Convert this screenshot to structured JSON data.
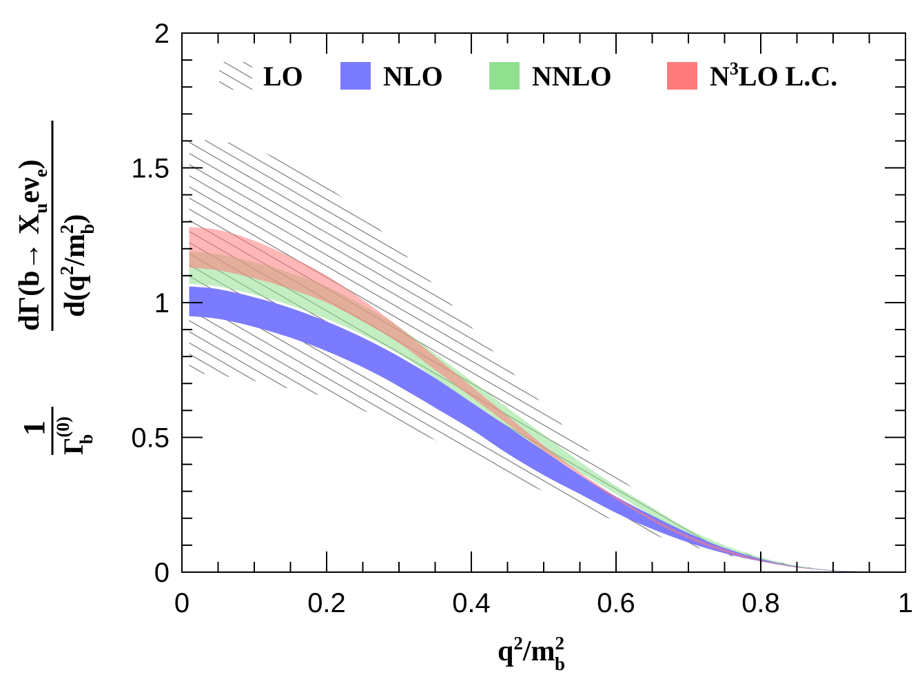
{
  "chart_data": {
    "type": "area",
    "x_range": [
      0,
      1
    ],
    "y_range": [
      0,
      2
    ],
    "x_ticks": [
      0,
      0.2,
      0.4,
      0.6,
      0.8,
      1
    ],
    "x_tick_labels": [
      "0",
      "0.2",
      "0.4",
      "0.6",
      "0.8",
      "1"
    ],
    "y_ticks": [
      0,
      0.5,
      1,
      1.5,
      2
    ],
    "y_tick_labels": [
      "0",
      "0.5",
      "1",
      "1.5",
      "2"
    ],
    "x_minor_step": 0.05,
    "y_minor_step": 0.1,
    "xlabel": "q²/m²b",
    "ylabel": "1/Γb(0) · dΓ(b→ Xu e ν̄e)/d(q²/m²b)",
    "grid": false,
    "legend_position": "top",
    "x": [
      0.01,
      0.05,
      0.1,
      0.15,
      0.2,
      0.25,
      0.3,
      0.35,
      0.4,
      0.45,
      0.5,
      0.55,
      0.6,
      0.65,
      0.7,
      0.75,
      0.8,
      0.85,
      0.9,
      0.95,
      0.97
    ],
    "series": [
      {
        "name": "LO",
        "style": "hatch",
        "color": "#6e6e6e",
        "upper": [
          1.6,
          1.6,
          1.57,
          1.51,
          1.43,
          1.33,
          1.2,
          1.06,
          0.91,
          0.76,
          0.62,
          0.48,
          0.36,
          0.26,
          0.17,
          0.1,
          0.055,
          0.025,
          0.008,
          0.001,
          0.0
        ],
        "lower": [
          0.74,
          0.73,
          0.71,
          0.68,
          0.65,
          0.6,
          0.55,
          0.49,
          0.43,
          0.36,
          0.3,
          0.24,
          0.19,
          0.14,
          0.1,
          0.065,
          0.038,
          0.018,
          0.006,
          0.001,
          0.0
        ]
      },
      {
        "name": "NLO",
        "style": "fill",
        "color": "#7b7bff",
        "upper": [
          1.06,
          1.05,
          1.02,
          0.98,
          0.93,
          0.87,
          0.8,
          0.72,
          0.63,
          0.54,
          0.45,
          0.36,
          0.28,
          0.21,
          0.145,
          0.09,
          0.05,
          0.022,
          0.007,
          0.001,
          0.0
        ],
        "lower": [
          0.95,
          0.94,
          0.91,
          0.87,
          0.82,
          0.76,
          0.69,
          0.61,
          0.53,
          0.44,
          0.36,
          0.29,
          0.22,
          0.16,
          0.11,
          0.07,
          0.04,
          0.018,
          0.005,
          0.0005,
          0.0
        ]
      },
      {
        "name": "NNLO",
        "style": "fill",
        "color": "#8fe08f",
        "upper": [
          1.19,
          1.18,
          1.15,
          1.11,
          1.06,
          0.99,
          0.91,
          0.81,
          0.71,
          0.61,
          0.51,
          0.41,
          0.32,
          0.24,
          0.16,
          0.1,
          0.055,
          0.024,
          0.007,
          0.001,
          0.0
        ],
        "lower": [
          1.07,
          1.06,
          1.03,
          0.99,
          0.94,
          0.88,
          0.81,
          0.72,
          0.63,
          0.54,
          0.45,
          0.37,
          0.29,
          0.21,
          0.145,
          0.09,
          0.048,
          0.02,
          0.006,
          0.0006,
          0.0
        ]
      },
      {
        "name": "N³LO L.C.",
        "style": "fill",
        "color": "#ff7b7b",
        "upper": [
          1.28,
          1.27,
          1.23,
          1.17,
          1.1,
          1.01,
          0.91,
          0.8,
          0.69,
          0.58,
          0.47,
          0.37,
          0.28,
          0.2,
          0.135,
          0.085,
          0.045,
          0.02,
          0.006,
          0.001,
          0.0
        ],
        "lower": [
          1.13,
          1.12,
          1.09,
          1.05,
          1.0,
          0.93,
          0.85,
          0.75,
          0.65,
          0.55,
          0.45,
          0.36,
          0.27,
          0.19,
          0.125,
          0.075,
          0.04,
          0.017,
          0.005,
          0.0006,
          0.0
        ]
      }
    ]
  },
  "legend": {
    "lo": "LO",
    "nlo": "NLO",
    "nnlo": "NNLO",
    "n3lo_prefix": "N",
    "n3lo_sup": "3",
    "n3lo_suffix": "LO L.C."
  },
  "xlabel_parts": {
    "base": "q",
    "sup1": "2",
    "slash": "/m",
    "sup2": "2",
    "sub": "b"
  },
  "ylabel_parts": {
    "one": "1",
    "gamma": "Γ",
    "gamma_sup": "(0)",
    "gamma_sub": "b",
    "num_a": "dΓ(b→ X",
    "num_sub_u": "u",
    "num_b": "e",
    "nu": "ν",
    "num_sub_e": "e",
    "num_c": ")",
    "den_a": "d(q",
    "den_sup1": "2",
    "den_b": "/m",
    "den_sup2": "2",
    "den_sub": "b",
    "den_c": ")"
  }
}
